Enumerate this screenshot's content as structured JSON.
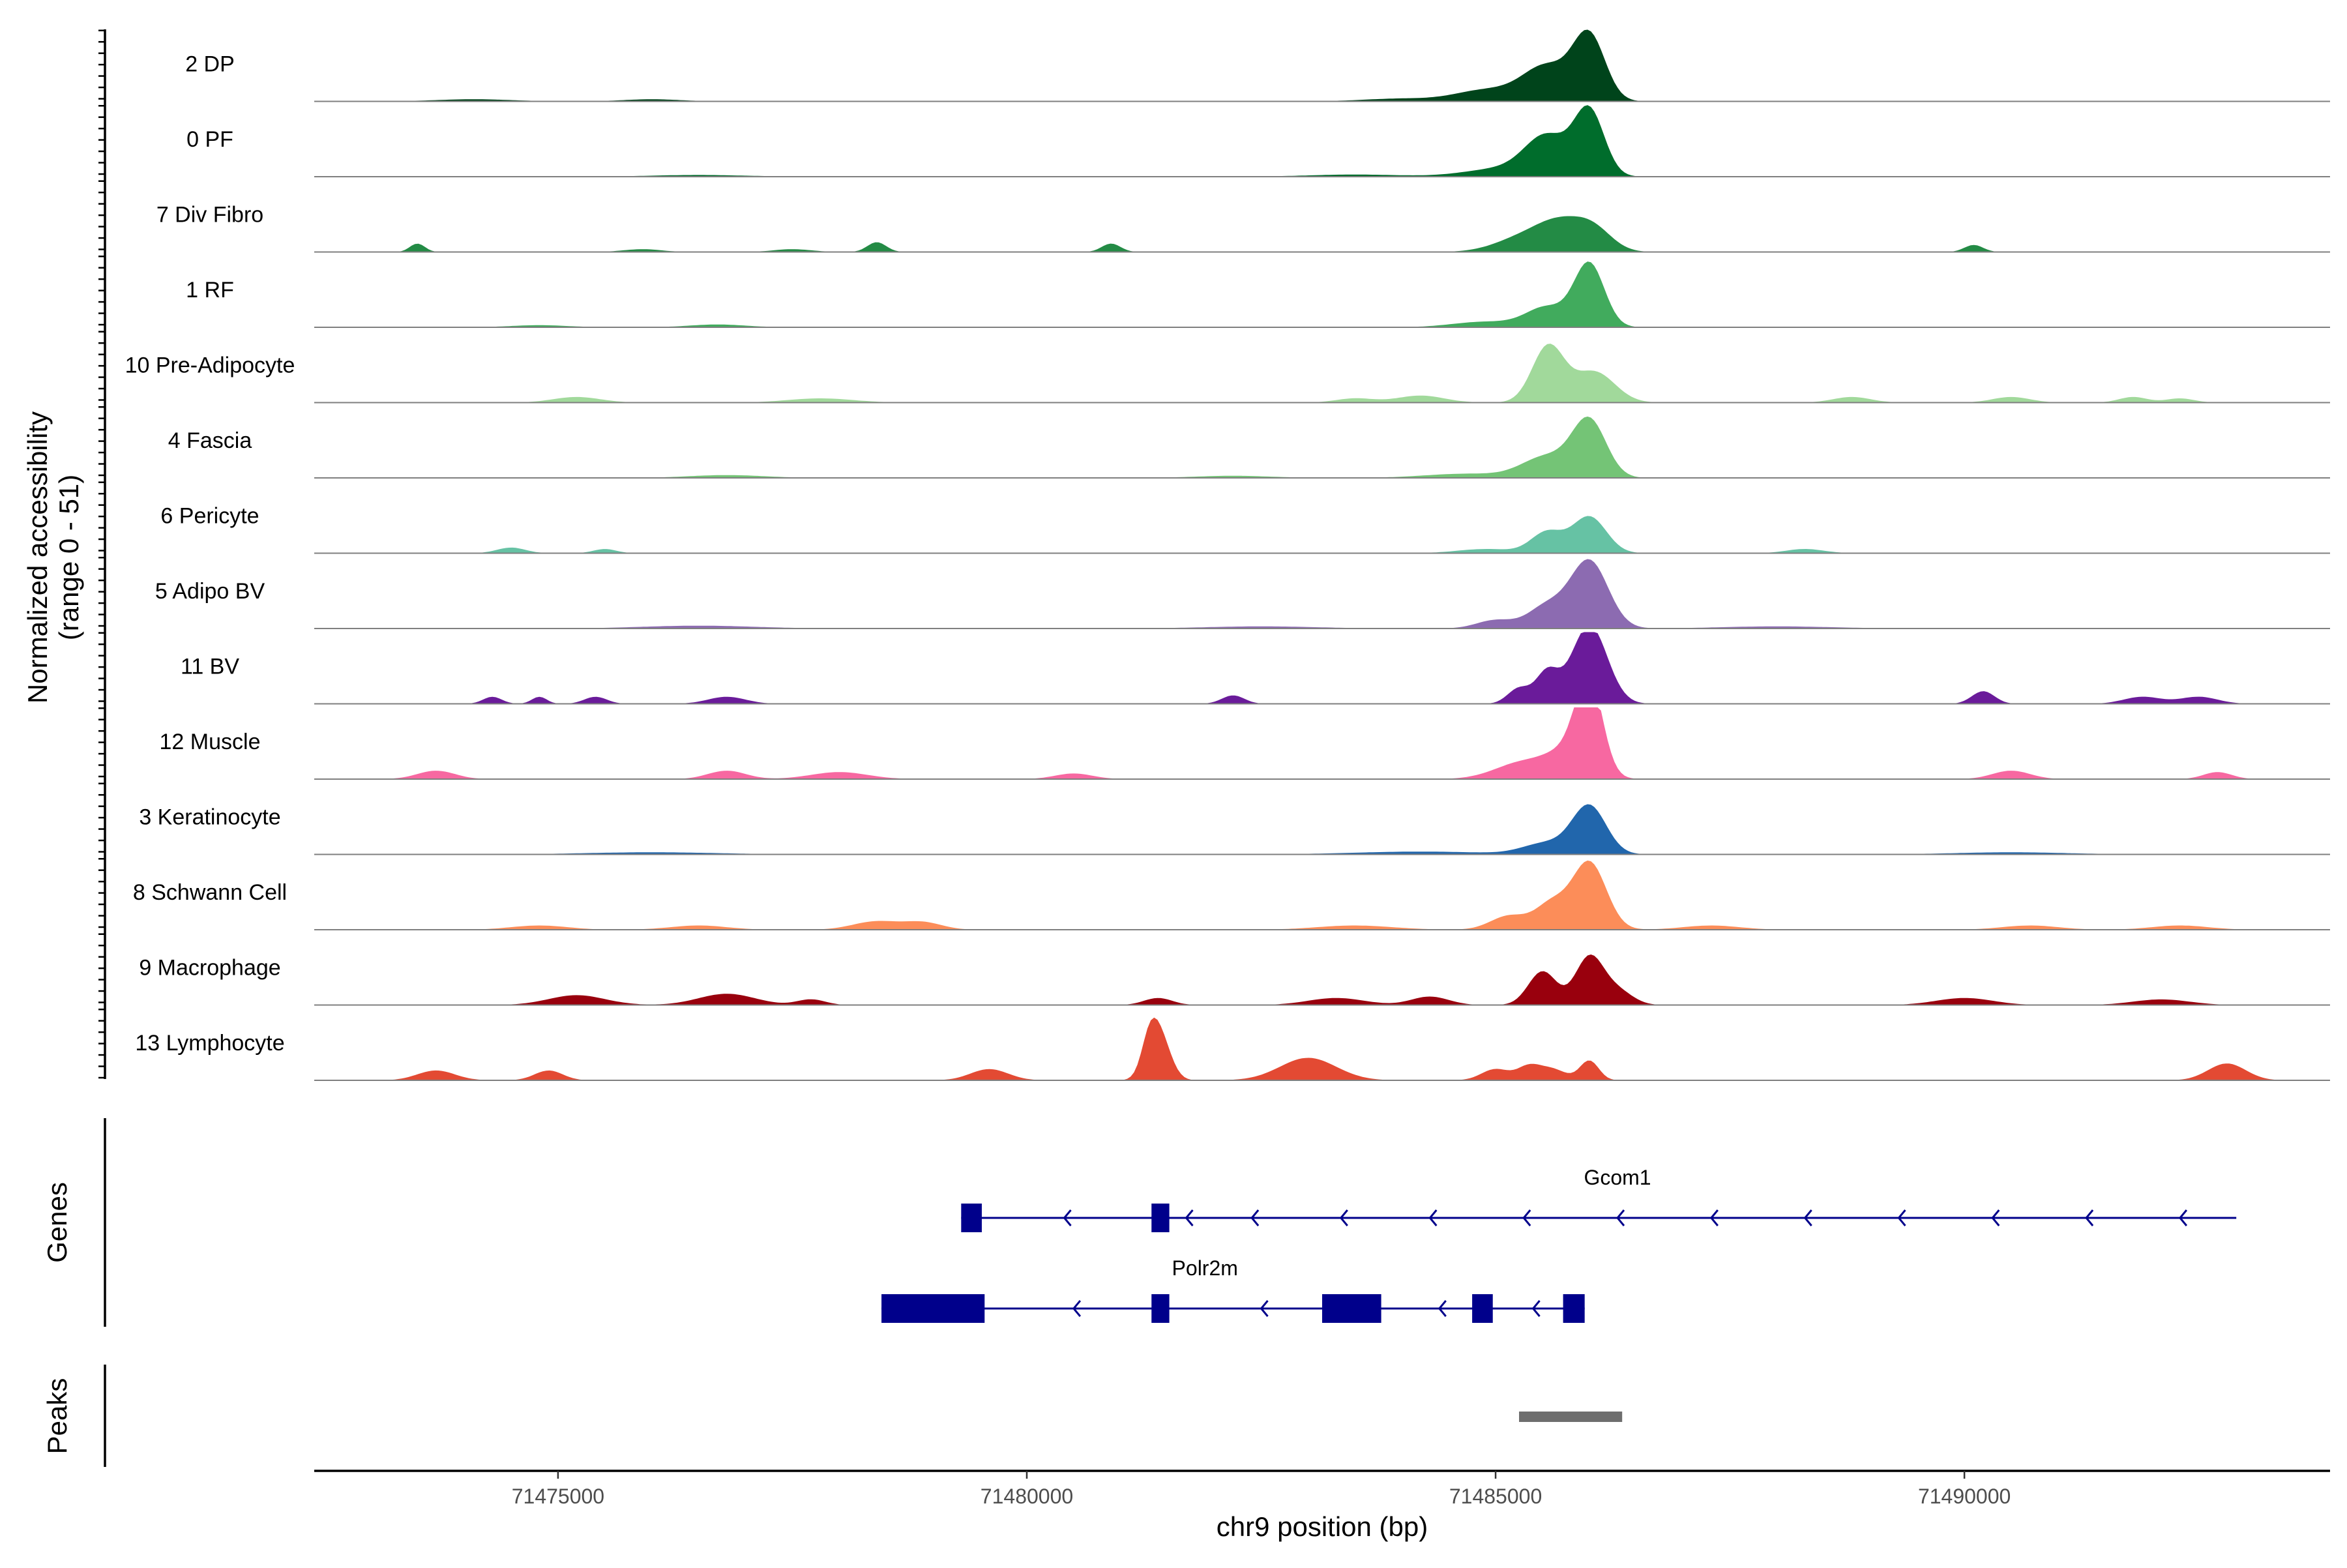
{
  "chart_data": {
    "type": "area",
    "title": "",
    "chromosome": "chr9",
    "xlabel": "chr9 position (bp)",
    "ylabel_line1": "Normalized accessibility",
    "ylabel_line2": "(range 0 - 51)",
    "xlim": [
      71472400,
      71493900
    ],
    "ylim": [
      0,
      51
    ],
    "x_ticks": [
      71475000,
      71480000,
      71485000,
      71490000
    ],
    "x_tick_labels": [
      "71475000",
      "71480000",
      "71485000",
      "71490000"
    ],
    "tracks": [
      {
        "name": "2 DP",
        "color": "#00441b",
        "peaks": [
          [
            71484900,
            320,
            8
          ],
          [
            71485550,
            260,
            25
          ],
          [
            71486000,
            170,
            45
          ],
          [
            71484000,
            400,
            2
          ],
          [
            71474100,
            400,
            1.5
          ],
          [
            71476000,
            300,
            1.5
          ]
        ]
      },
      {
        "name": "0 PF",
        "color": "#006d2c",
        "peaks": [
          [
            71485100,
            400,
            6
          ],
          [
            71485550,
            230,
            27
          ],
          [
            71486000,
            160,
            46
          ],
          [
            71483500,
            500,
            1.5
          ],
          [
            71476500,
            500,
            1.2
          ]
        ]
      },
      {
        "name": "7 Div Fibro",
        "color": "#238b45",
        "peaks": [
          [
            71485300,
            300,
            10
          ],
          [
            71485700,
            250,
            18
          ],
          [
            71486050,
            200,
            14
          ],
          [
            71473500,
            80,
            6
          ],
          [
            71478400,
            100,
            7
          ],
          [
            71480900,
            100,
            6
          ],
          [
            71490100,
            100,
            5
          ],
          [
            71475900,
            200,
            2
          ],
          [
            71477500,
            200,
            2
          ]
        ]
      },
      {
        "name": "1 RF",
        "color": "#41ab5d",
        "peaks": [
          [
            71485550,
            220,
            14
          ],
          [
            71486000,
            160,
            45
          ],
          [
            71484900,
            350,
            4
          ],
          [
            71476700,
            300,
            2
          ],
          [
            71474800,
            300,
            1.5
          ]
        ]
      },
      {
        "name": "10 Pre-Adipocyte",
        "color": "#a1d99b",
        "peaks": [
          [
            71485560,
            170,
            40
          ],
          [
            71486050,
            220,
            22
          ],
          [
            71484200,
            250,
            5
          ],
          [
            71475200,
            250,
            4
          ],
          [
            71477800,
            350,
            3
          ],
          [
            71483500,
            200,
            3
          ],
          [
            71488800,
            200,
            4
          ],
          [
            71490500,
            200,
            4
          ],
          [
            71491800,
            150,
            4
          ],
          [
            71492300,
            150,
            3
          ]
        ]
      },
      {
        "name": "4 Fascia",
        "color": "#74c476",
        "peaks": [
          [
            71485550,
            260,
            15
          ],
          [
            71486000,
            180,
            40
          ],
          [
            71484700,
            450,
            3
          ],
          [
            71476800,
            400,
            2
          ],
          [
            71482200,
            400,
            1.5
          ]
        ]
      },
      {
        "name": "6 Pericyte",
        "color": "#66c2a4",
        "peaks": [
          [
            71485550,
            170,
            15
          ],
          [
            71486000,
            180,
            26
          ],
          [
            71484900,
            300,
            3
          ],
          [
            71474500,
            150,
            4
          ],
          [
            71475500,
            120,
            3
          ],
          [
            71488300,
            200,
            3
          ]
        ]
      },
      {
        "name": "5 Adipo BV",
        "color": "#8c6bb1",
        "peaks": [
          [
            71485000,
            200,
            6
          ],
          [
            71485550,
            200,
            16
          ],
          [
            71486000,
            200,
            48
          ],
          [
            71476500,
            600,
            2
          ],
          [
            71482500,
            600,
            1.5
          ],
          [
            71488000,
            600,
            1.5
          ]
        ]
      },
      {
        "name": "11 BV",
        "color": "#6a1b9a",
        "peaks": [
          [
            71486000,
            190,
            56
          ],
          [
            71485550,
            120,
            22
          ],
          [
            71485250,
            120,
            11
          ],
          [
            71474300,
            100,
            5
          ],
          [
            71474800,
            80,
            5
          ],
          [
            71475400,
            120,
            5
          ],
          [
            71476800,
            200,
            5
          ],
          [
            71482200,
            120,
            6
          ],
          [
            71490200,
            120,
            9
          ],
          [
            71491900,
            200,
            5
          ],
          [
            71492500,
            200,
            5
          ]
        ]
      },
      {
        "name": "12 Muscle",
        "color": "#f768a1",
        "peaks": [
          [
            71486000,
            140,
            62
          ],
          [
            71485800,
            230,
            18
          ],
          [
            71485300,
            300,
            12
          ],
          [
            71473700,
            200,
            6
          ],
          [
            71476800,
            200,
            6
          ],
          [
            71478000,
            300,
            5
          ],
          [
            71480500,
            200,
            4
          ],
          [
            71490500,
            200,
            6
          ],
          [
            71492700,
            150,
            5
          ]
        ]
      },
      {
        "name": "3 Keratinocyte",
        "color": "#2166ac",
        "peaks": [
          [
            71486000,
            180,
            34
          ],
          [
            71485550,
            250,
            8
          ],
          [
            71484200,
            700,
            2
          ],
          [
            71476000,
            700,
            1.5
          ],
          [
            71490500,
            600,
            1.5
          ]
        ]
      },
      {
        "name": "8 Schwann Cell",
        "color": "#fc8d59",
        "peaks": [
          [
            71486000,
            180,
            48
          ],
          [
            71485600,
            170,
            18
          ],
          [
            71485150,
            200,
            10
          ],
          [
            71478400,
            250,
            6
          ],
          [
            71478900,
            200,
            5
          ],
          [
            71476500,
            300,
            3
          ],
          [
            71474800,
            300,
            3
          ],
          [
            71483500,
            400,
            3
          ],
          [
            71487300,
            300,
            3
          ],
          [
            71490700,
            300,
            3
          ],
          [
            71492300,
            300,
            3
          ]
        ]
      },
      {
        "name": "9 Macrophage",
        "color": "#99000d",
        "peaks": [
          [
            71486000,
            150,
            34
          ],
          [
            71485500,
            150,
            24
          ],
          [
            71486300,
            160,
            10
          ],
          [
            71475200,
            300,
            7
          ],
          [
            71476800,
            300,
            8
          ],
          [
            71477700,
            150,
            4
          ],
          [
            71481400,
            150,
            5
          ],
          [
            71483300,
            300,
            5
          ],
          [
            71484300,
            200,
            6
          ],
          [
            71490000,
            300,
            5
          ],
          [
            71492100,
            300,
            4
          ]
        ]
      },
      {
        "name": "13 Lymphocyte",
        "color": "#e34a33",
        "peaks": [
          [
            71481400,
            120,
            36
          ],
          [
            71481300,
            80,
            14
          ],
          [
            71483000,
            300,
            16
          ],
          [
            71473700,
            200,
            7
          ],
          [
            71474900,
            150,
            7
          ],
          [
            71479600,
            200,
            8
          ],
          [
            71485000,
            150,
            8
          ],
          [
            71485350,
            120,
            9
          ],
          [
            71485600,
            150,
            8
          ],
          [
            71486000,
            100,
            14
          ],
          [
            71492800,
            200,
            12
          ]
        ]
      }
    ],
    "genes_label": "Genes",
    "genes": [
      {
        "name": "Gcom1",
        "strand": "-",
        "start": 71479300,
        "end": 71492900,
        "exons": [
          [
            71479300,
            71479520
          ],
          [
            71481330,
            71481520
          ]
        ],
        "arrows": [
          71480400,
          71481700,
          71482400,
          71483350,
          71484300,
          71485300,
          71486300,
          71487300,
          71488300,
          71489300,
          71490300,
          71491300,
          71492300
        ]
      },
      {
        "name": "Polr2m",
        "strand": "-",
        "start": 71478450,
        "end": 71485950,
        "exons": [
          [
            71478450,
            71479550
          ],
          [
            71481330,
            71481520
          ],
          [
            71483150,
            71483780
          ],
          [
            71484750,
            71484970
          ],
          [
            71485720,
            71485950
          ]
        ],
        "arrows": [
          71480500,
          71482500,
          71484400,
          71485400
        ]
      }
    ],
    "peaks_label": "Peaks",
    "peak_regions": [
      [
        71485250,
        71486350
      ]
    ]
  }
}
